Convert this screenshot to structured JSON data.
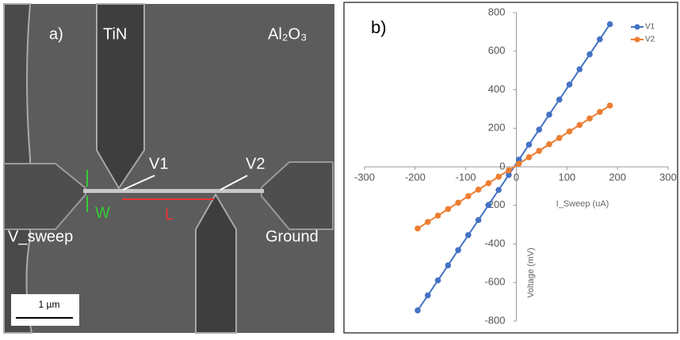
{
  "image_panel": {
    "label": "a)",
    "material_top": "TiN",
    "material_bg": "Al₂O₃",
    "probe_1": "V1",
    "probe_2": "V2",
    "width_label": "W",
    "length_label": "L",
    "left_contact": "V_sweep",
    "right_contact": "Ground",
    "scale_bar": "1 µm"
  },
  "chart_data": {
    "type": "line",
    "panel_label": "b)",
    "x_label": "I_Sweep (uA)",
    "y_label": "Voltage (mV)",
    "x": [
      -195,
      -175,
      -155,
      -135,
      -115,
      -95,
      -75,
      -55,
      -35,
      -15,
      5,
      25,
      45,
      65,
      85,
      105,
      125,
      145,
      165,
      185
    ],
    "series": [
      {
        "name": "V1",
        "color": "#4472c4",
        "values": [
          -745,
          -667,
          -589,
          -511,
          -432,
          -354,
          -276,
          -198,
          -120,
          -42,
          37,
          115,
          193,
          271,
          349,
          427,
          506,
          584,
          662,
          740
        ]
      },
      {
        "name": "V2",
        "color": "#ed7d31",
        "values": [
          -320,
          -286,
          -253,
          -219,
          -186,
          -152,
          -118,
          -85,
          -51,
          -18,
          16,
          50,
          83,
          117,
          150,
          184,
          217,
          251,
          285,
          318
        ]
      }
    ],
    "xlim": [
      -300,
      300
    ],
    "xticks": [
      -300,
      -200,
      -100,
      0,
      100,
      200,
      300
    ],
    "ylim": [
      -800,
      800
    ],
    "yticks": [
      -800,
      -600,
      -400,
      -200,
      0,
      200,
      400,
      600,
      800
    ],
    "grid": false,
    "legend": "top-right"
  }
}
